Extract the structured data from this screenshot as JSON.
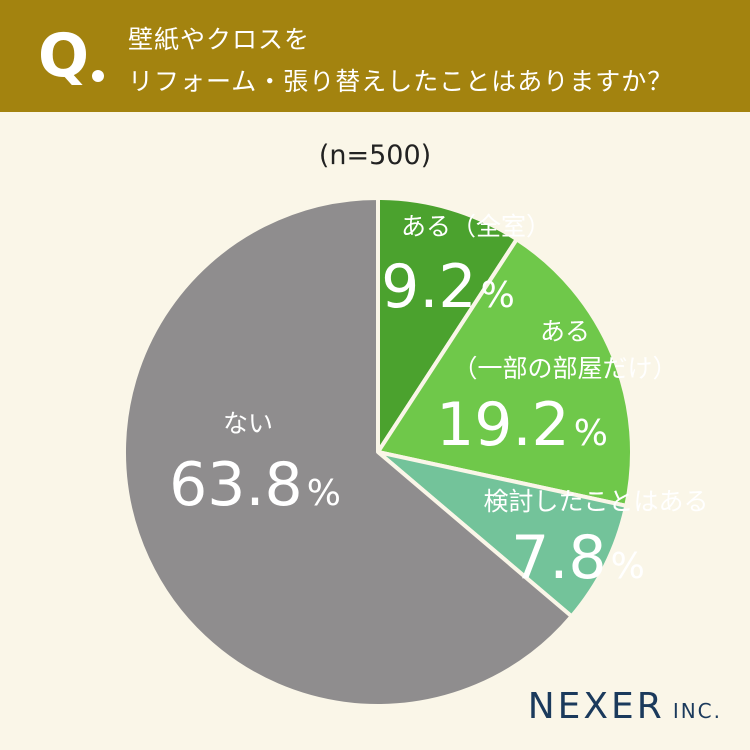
{
  "header": {
    "q_letter": "Q",
    "line1": "壁紙やクロスを",
    "line2": "リフォーム・張り替えしたことはありますか？"
  },
  "sample_size": "(n=500)",
  "chart_data": {
    "type": "pie",
    "title": "",
    "slices": [
      {
        "label": "ある（全室）",
        "label_lines": [
          "ある（全室）"
        ],
        "value": 9.2,
        "value_text": "9.2",
        "unit": "%",
        "color": "#4ba22e"
      },
      {
        "label": "ある（一部の部屋だけ）",
        "label_lines": [
          "ある",
          "（一部の部屋だけ）"
        ],
        "value": 19.2,
        "value_text": "19.2",
        "unit": "%",
        "color": "#6fc84a"
      },
      {
        "label": "検討したことはある",
        "label_lines": [
          "検討したことはある"
        ],
        "value": 7.8,
        "value_text": "7.8",
        "unit": "%",
        "color": "#73c39a"
      },
      {
        "label": "ない",
        "label_lines": [
          "ない"
        ],
        "value": 63.8,
        "value_text": "63.8",
        "unit": "%",
        "color": "#8f8d8e"
      }
    ]
  },
  "logo": {
    "main": "NEXER",
    "sub": "INC."
  }
}
